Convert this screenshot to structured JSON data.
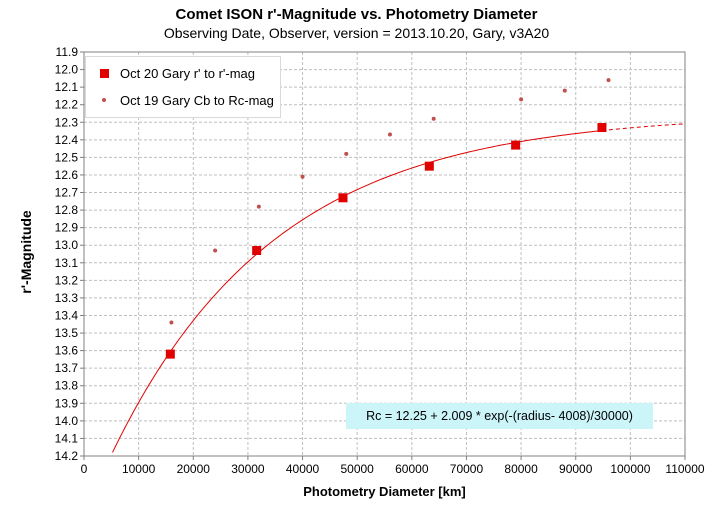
{
  "chart_data": {
    "type": "scatter",
    "title": "Comet ISON r'-Magnitude  vs. Photometry Diameter",
    "subtitle": "Observing Date, Observer, version = 2013.10.20, Gary, v3A20",
    "xlabel": "Photometry Diameter  [km]",
    "ylabel": "r'-Magnitude",
    "xlim": [
      0,
      110000
    ],
    "ylim": [
      11.9,
      14.2
    ],
    "y_inverted": true,
    "x_ticks": [
      0,
      10000,
      20000,
      30000,
      40000,
      50000,
      60000,
      70000,
      80000,
      90000,
      100000,
      110000
    ],
    "y_ticks": [
      "11.9",
      "12.0",
      "12.1",
      "12.2",
      "12.3",
      "12.4",
      "12.5",
      "12.6",
      "12.7",
      "12.8",
      "12.9",
      "13.0",
      "13.1",
      "13.2",
      "13.3",
      "13.4",
      "13.5",
      "13.6",
      "13.7",
      "13.8",
      "13.9",
      "14.0",
      "14.1",
      "14.2"
    ],
    "grid": true,
    "legend_position": "top-left",
    "series": [
      {
        "name": "Oct 20 Gary r' to r'-mag",
        "marker": "square",
        "color": "#e00000",
        "x": [
          15800,
          31600,
          47400,
          63200,
          79000,
          94800
        ],
        "y": [
          13.62,
          13.03,
          12.73,
          12.55,
          12.43,
          12.33
        ]
      },
      {
        "name": "Oct 19 Gary Cb to Rc-mag",
        "marker": "dot",
        "color": "#c0504d",
        "x": [
          16000,
          24000,
          32000,
          40000,
          48000,
          56000,
          64000,
          80000,
          88000,
          96000
        ],
        "y": [
          13.44,
          13.03,
          12.78,
          12.61,
          12.48,
          12.37,
          12.28,
          12.17,
          12.12,
          12.06
        ]
      }
    ],
    "fit": {
      "label": "Rc = 12.25 + 2.009  * exp(-(radius- 4008)/30000)",
      "a": 12.25,
      "b": 2.009,
      "x0": 4008,
      "scale": 30000,
      "solid_range": [
        0,
        94800
      ],
      "dashed_range": [
        94800,
        110000
      ],
      "color": "#e00000"
    }
  }
}
